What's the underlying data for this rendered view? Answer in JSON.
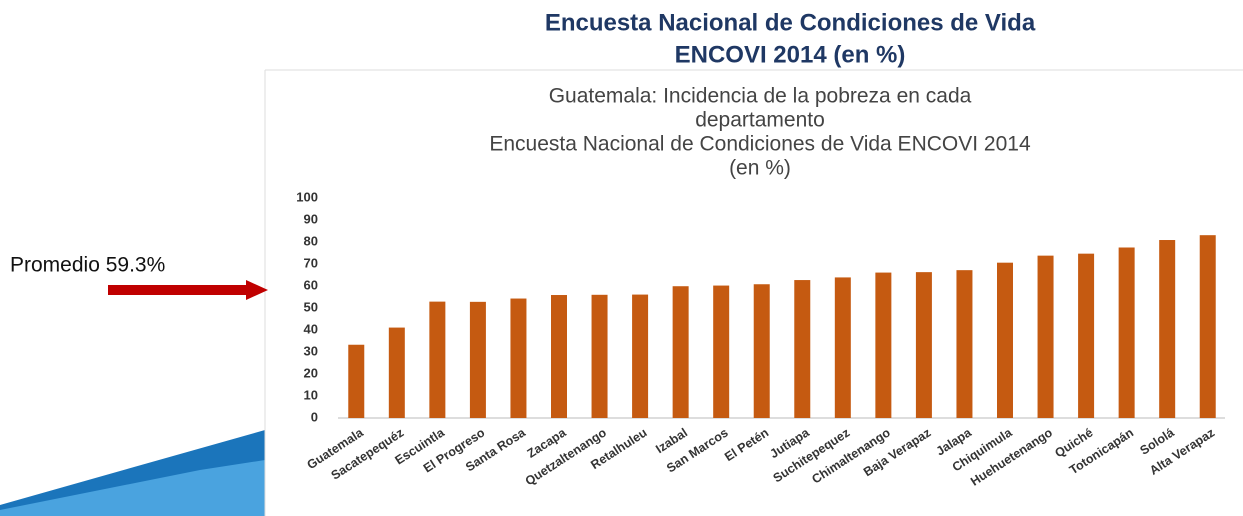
{
  "slide_title": [
    "Encuesta Nacional de Condiciones de Vida",
    "ENCOVI 2014 (en %)"
  ],
  "annotation": "Promedio 59.3%",
  "chart_data": {
    "type": "bar",
    "title": [
      "Guatemala: Incidencia de la pobreza en cada",
      "departamento",
      "Encuesta Nacional de Condiciones de Vida ENCOVI 2014",
      "(en %)"
    ],
    "categories": [
      "Guatemala",
      "Sacatepequéz",
      "Escuintla",
      "El Progreso",
      "Santa Rosa",
      "Zacapa",
      "Quetzaltenango",
      "Retalhuleu",
      "Izabal",
      "San Marcos",
      "El Petén",
      "Jutiapa",
      "Suchitepequez",
      "Chimaltenango",
      "Baja Verapaz",
      "Jalapa",
      "Chiquimula",
      "Huehuetenango",
      "Quiché",
      "Totonicapán",
      "Sololá",
      "Alta Verapaz"
    ],
    "values": [
      33.3,
      41.1,
      52.9,
      52.8,
      54.3,
      55.9,
      56.0,
      56.1,
      59.9,
      60.2,
      60.8,
      62.7,
      63.9,
      66.1,
      66.3,
      67.2,
      70.6,
      73.8,
      74.7,
      77.5,
      80.9,
      83.1
    ],
    "color": "#c55a11",
    "ylim": [
      0,
      100
    ],
    "yticks": [
      0,
      10,
      20,
      30,
      40,
      50,
      60,
      70,
      80,
      90,
      100
    ],
    "grid": false
  }
}
